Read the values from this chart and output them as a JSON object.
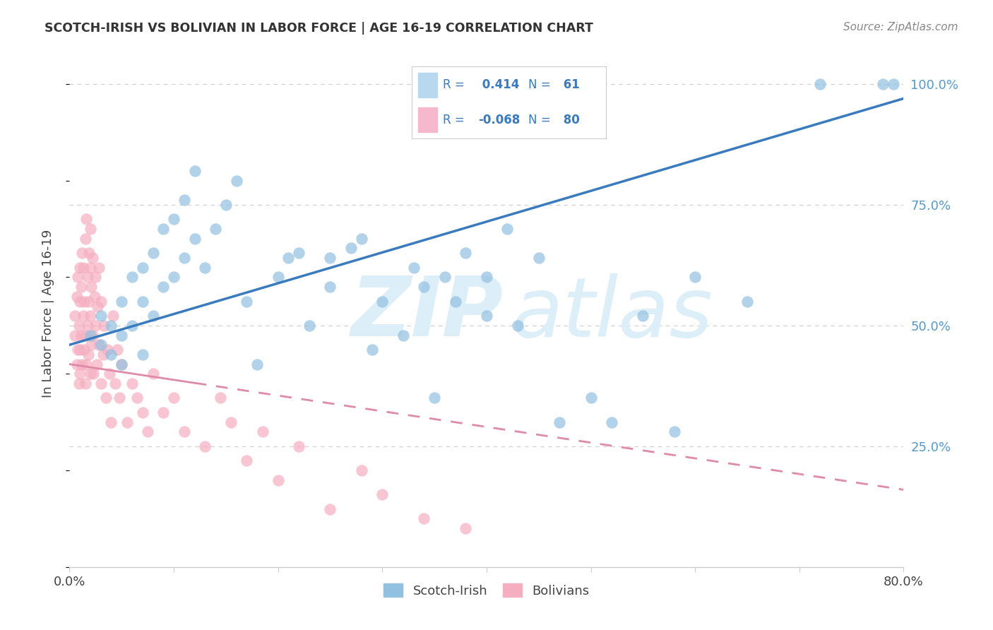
{
  "title": "SCOTCH-IRISH VS BOLIVIAN IN LABOR FORCE | AGE 16-19 CORRELATION CHART",
  "source": "Source: ZipAtlas.com",
  "ylabel": "In Labor Force | Age 16-19",
  "xlim": [
    0.0,
    0.8
  ],
  "ylim": [
    0.0,
    1.05
  ],
  "xtick_positions": [
    0.0,
    0.1,
    0.2,
    0.3,
    0.4,
    0.5,
    0.6,
    0.7,
    0.8
  ],
  "xticklabels": [
    "0.0%",
    "",
    "",
    "",
    "",
    "",
    "",
    "",
    "80.0%"
  ],
  "ytick_positions": [
    0.25,
    0.5,
    0.75,
    1.0
  ],
  "ytick_labels": [
    "25.0%",
    "50.0%",
    "75.0%",
    "100.0%"
  ],
  "scotch_irish_color": "#91c0e0",
  "scotch_irish_edge_color": "#91c0e0",
  "bolivian_color": "#f5aec0",
  "bolivian_edge_color": "#f5aec0",
  "scotch_irish_line_color": "#3a7abf",
  "bolivian_line_color": "#e08aaa",
  "legend_R_scotch": " 0.414",
  "legend_N_scotch": " 61",
  "legend_R_bolivian": "-0.068",
  "legend_N_bolivian": " 80",
  "si_line_x0": 0.0,
  "si_line_y0": 0.46,
  "si_line_x1": 0.8,
  "si_line_y1": 0.97,
  "bol_line_x0": 0.0,
  "bol_line_y0": 0.42,
  "bol_line_x1": 0.8,
  "bol_line_y1": 0.16,
  "scotch_irish_x": [
    0.02,
    0.03,
    0.03,
    0.04,
    0.04,
    0.05,
    0.05,
    0.05,
    0.06,
    0.06,
    0.07,
    0.07,
    0.07,
    0.08,
    0.08,
    0.09,
    0.09,
    0.1,
    0.1,
    0.11,
    0.11,
    0.12,
    0.12,
    0.13,
    0.14,
    0.15,
    0.16,
    0.17,
    0.18,
    0.2,
    0.21,
    0.22,
    0.23,
    0.25,
    0.25,
    0.27,
    0.28,
    0.29,
    0.3,
    0.32,
    0.33,
    0.34,
    0.35,
    0.36,
    0.37,
    0.38,
    0.4,
    0.4,
    0.42,
    0.43,
    0.45,
    0.47,
    0.5,
    0.52,
    0.55,
    0.58,
    0.6,
    0.65,
    0.72,
    0.78,
    0.79
  ],
  "scotch_irish_y": [
    0.48,
    0.46,
    0.52,
    0.44,
    0.5,
    0.55,
    0.48,
    0.42,
    0.6,
    0.5,
    0.62,
    0.55,
    0.44,
    0.65,
    0.52,
    0.7,
    0.58,
    0.72,
    0.6,
    0.76,
    0.64,
    0.82,
    0.68,
    0.62,
    0.7,
    0.75,
    0.8,
    0.55,
    0.42,
    0.6,
    0.64,
    0.65,
    0.5,
    0.58,
    0.64,
    0.66,
    0.68,
    0.45,
    0.55,
    0.48,
    0.62,
    0.58,
    0.35,
    0.6,
    0.55,
    0.65,
    0.52,
    0.6,
    0.7,
    0.5,
    0.64,
    0.3,
    0.35,
    0.3,
    0.52,
    0.28,
    0.6,
    0.55,
    1.0,
    1.0,
    1.0
  ],
  "bolivian_x": [
    0.005,
    0.005,
    0.007,
    0.007,
    0.008,
    0.008,
    0.009,
    0.009,
    0.01,
    0.01,
    0.01,
    0.01,
    0.011,
    0.011,
    0.012,
    0.012,
    0.013,
    0.013,
    0.014,
    0.014,
    0.015,
    0.015,
    0.015,
    0.016,
    0.016,
    0.017,
    0.017,
    0.018,
    0.018,
    0.019,
    0.02,
    0.02,
    0.02,
    0.02,
    0.021,
    0.021,
    0.022,
    0.022,
    0.023,
    0.024,
    0.025,
    0.025,
    0.026,
    0.027,
    0.028,
    0.028,
    0.03,
    0.03,
    0.032,
    0.033,
    0.035,
    0.036,
    0.038,
    0.04,
    0.042,
    0.044,
    0.046,
    0.048,
    0.05,
    0.055,
    0.06,
    0.065,
    0.07,
    0.075,
    0.08,
    0.09,
    0.1,
    0.11,
    0.13,
    0.145,
    0.155,
    0.17,
    0.185,
    0.2,
    0.22,
    0.25,
    0.28,
    0.3,
    0.34,
    0.38
  ],
  "bolivian_y": [
    0.48,
    0.52,
    0.42,
    0.56,
    0.45,
    0.6,
    0.38,
    0.5,
    0.55,
    0.45,
    0.62,
    0.4,
    0.58,
    0.48,
    0.65,
    0.42,
    0.52,
    0.62,
    0.45,
    0.55,
    0.68,
    0.48,
    0.38,
    0.72,
    0.42,
    0.5,
    0.6,
    0.44,
    0.55,
    0.65,
    0.7,
    0.4,
    0.52,
    0.62,
    0.46,
    0.58,
    0.48,
    0.64,
    0.4,
    0.56,
    0.5,
    0.6,
    0.42,
    0.54,
    0.46,
    0.62,
    0.38,
    0.55,
    0.44,
    0.5,
    0.35,
    0.45,
    0.4,
    0.3,
    0.52,
    0.38,
    0.45,
    0.35,
    0.42,
    0.3,
    0.38,
    0.35,
    0.32,
    0.28,
    0.4,
    0.32,
    0.35,
    0.28,
    0.25,
    0.35,
    0.3,
    0.22,
    0.28,
    0.18,
    0.25,
    0.12,
    0.2,
    0.15,
    0.1,
    0.08
  ]
}
